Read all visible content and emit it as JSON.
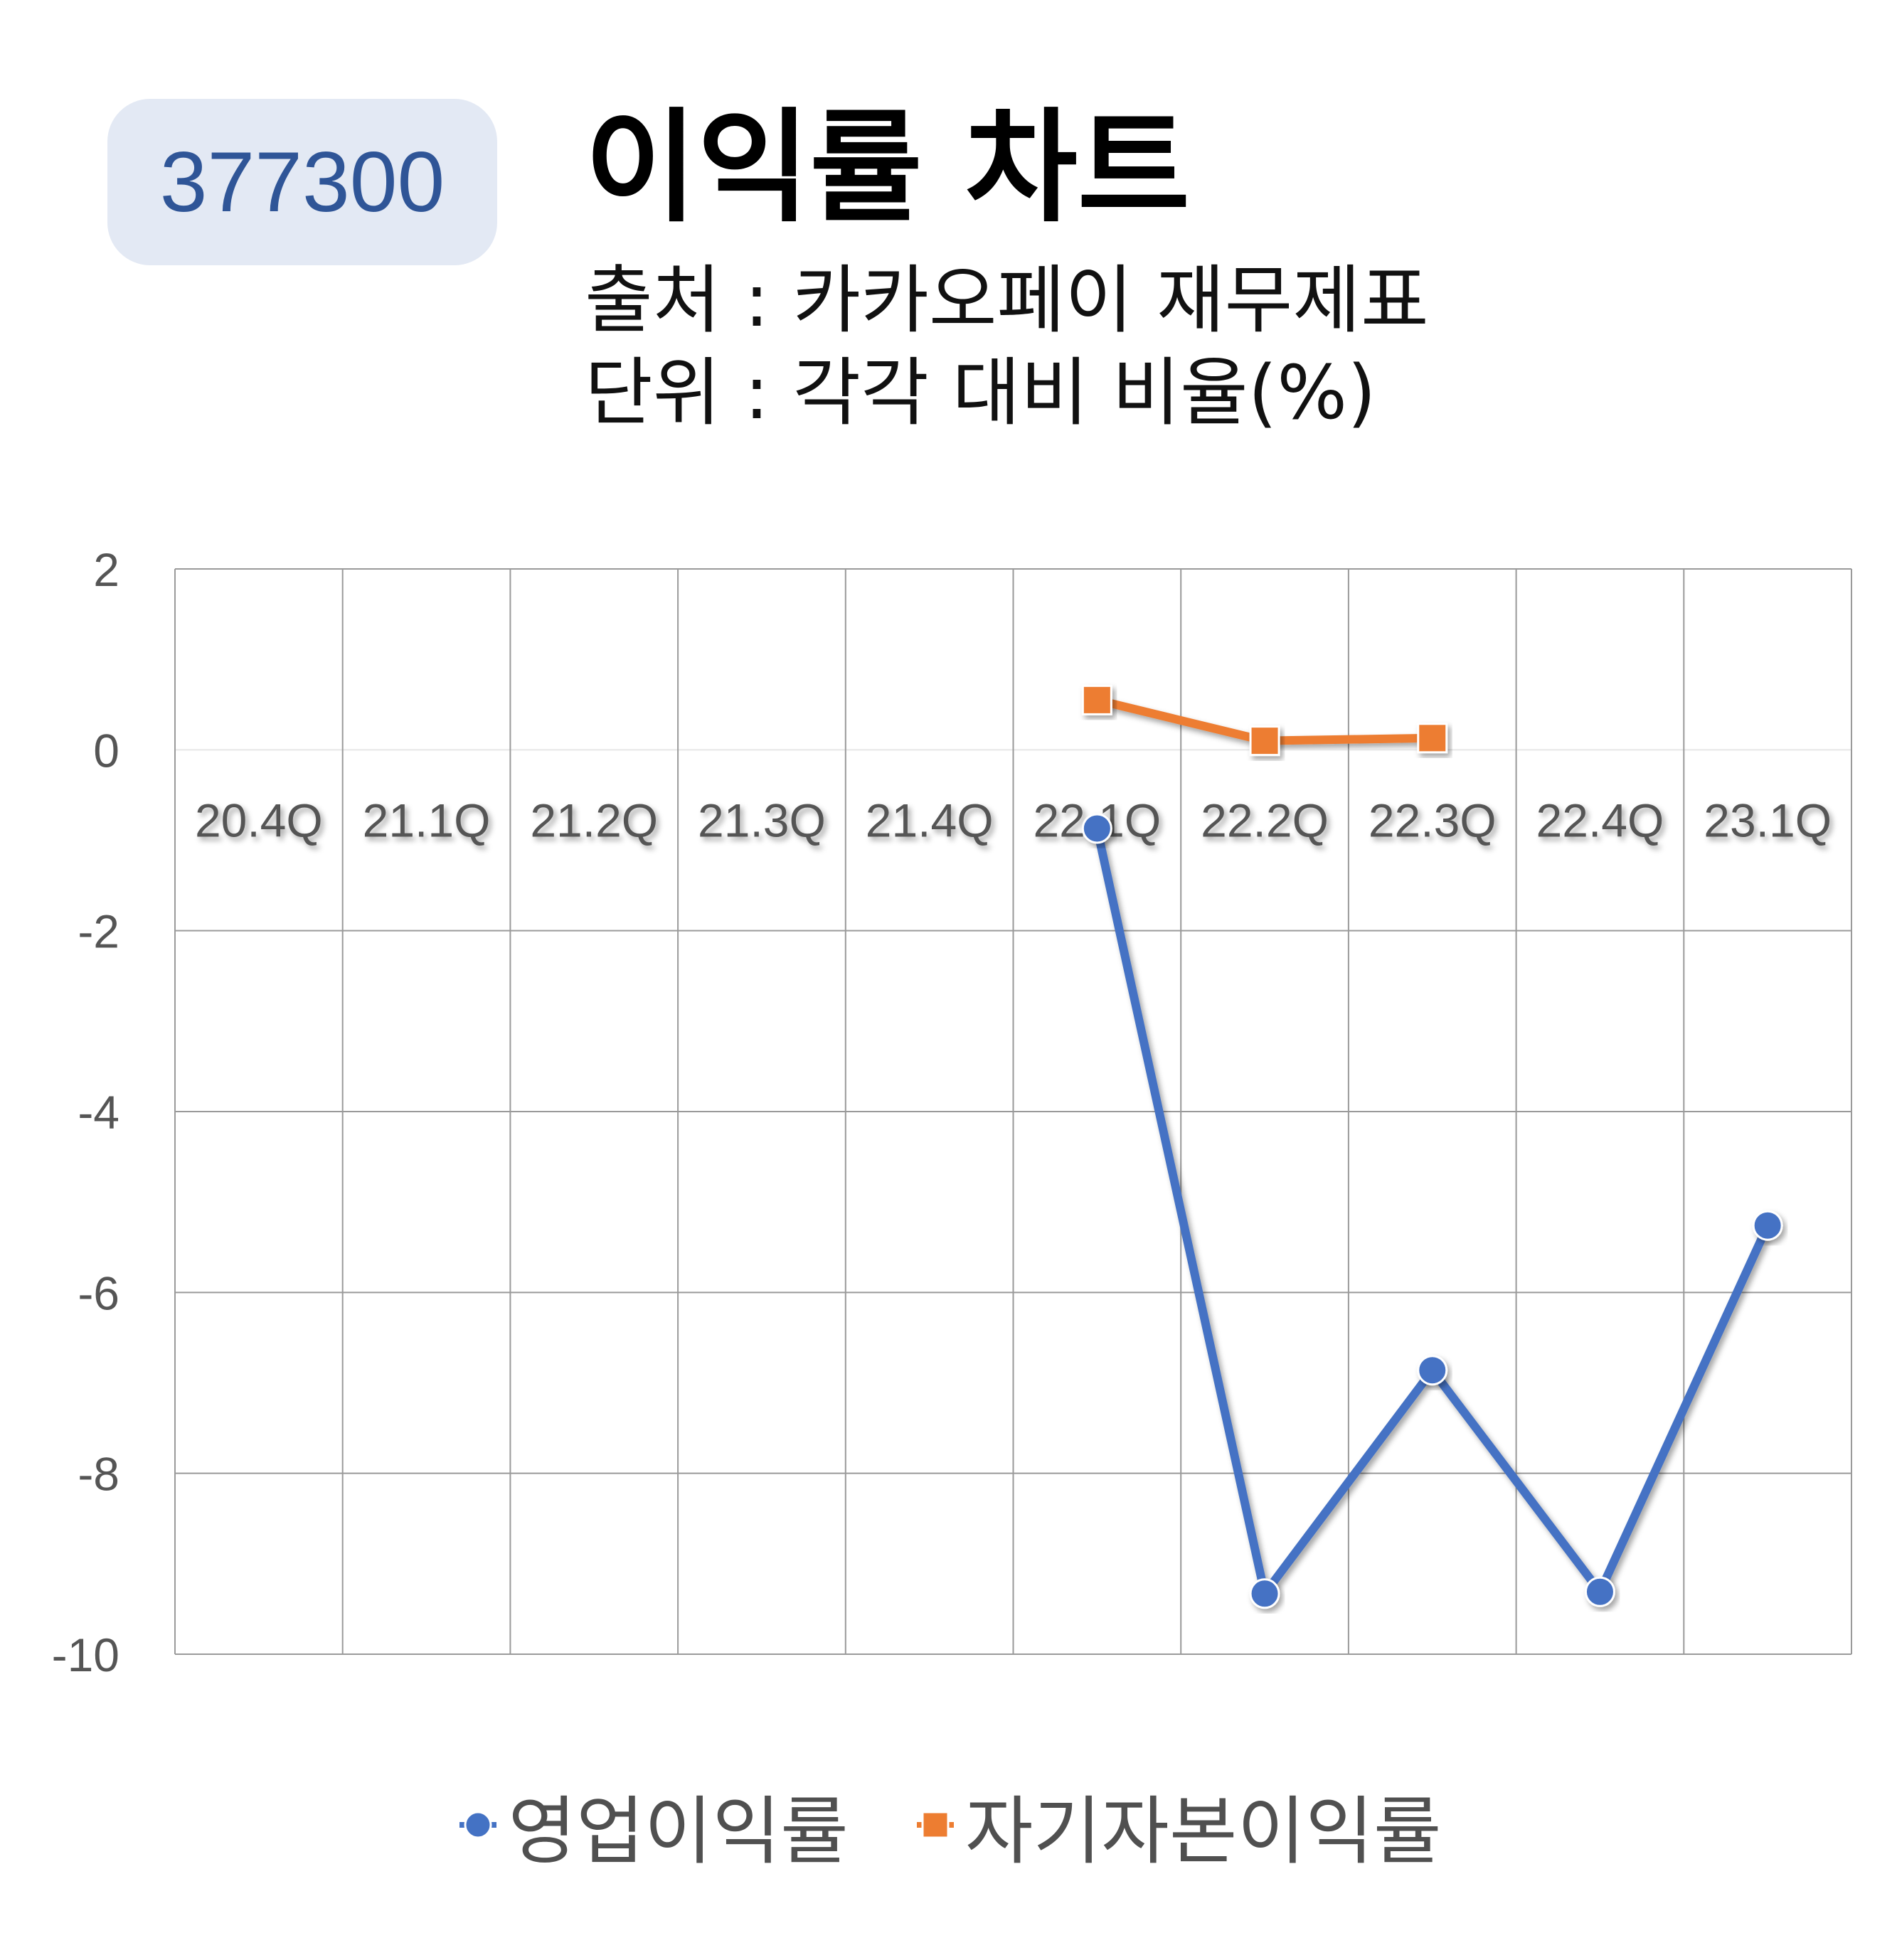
{
  "badge": {
    "code": "377300"
  },
  "header": {
    "title": "이익률 차트",
    "source": "출처 : 카카오페이 재무제표",
    "unit": "단위 : 각각 대비 비율(%)"
  },
  "chart_data": {
    "type": "line",
    "categories": [
      "20.4Q",
      "21.1Q",
      "21.2Q",
      "21.3Q",
      "21.4Q",
      "22.1Q",
      "22.2Q",
      "22.3Q",
      "22.4Q",
      "23.1Q"
    ],
    "series": [
      {
        "name": "영업이익률",
        "color": "#4472c4",
        "marker": "circle",
        "values": [
          null,
          null,
          null,
          null,
          null,
          -0.87,
          -9.33,
          -6.86,
          -9.31,
          -5.26
        ]
      },
      {
        "name": "자기자본이익률",
        "color": "#ed7d31",
        "marker": "square",
        "values": [
          null,
          null,
          null,
          null,
          null,
          0.55,
          0.1,
          0.13,
          null,
          null
        ]
      }
    ],
    "ylim": [
      -10,
      2
    ],
    "yticks": [
      2,
      0,
      -2,
      -4,
      -6,
      -8,
      -10
    ],
    "grid": true,
    "legend_position": "bottom"
  }
}
